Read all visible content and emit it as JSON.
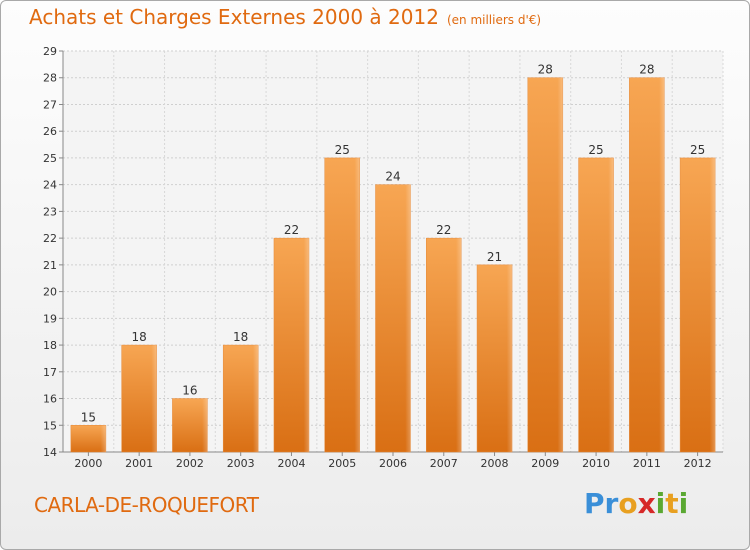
{
  "header": {
    "title": "Achats et Charges Externes 2000 à 2012",
    "unit": "(en milliers d'€)"
  },
  "footer": {
    "commune": "CARLA-DE-ROQUEFORT",
    "logo_letters": [
      {
        "ch": "P",
        "color": "#3a8fd8"
      },
      {
        "ch": "r",
        "color": "#3a8fd8"
      },
      {
        "ch": "o",
        "color": "#e8a020"
      },
      {
        "ch": "x",
        "color": "#d62828"
      },
      {
        "ch": "i",
        "color": "#5aa832"
      },
      {
        "ch": "t",
        "color": "#e8a020"
      },
      {
        "ch": "i",
        "color": "#5aa832"
      }
    ]
  },
  "chart_data": {
    "type": "bar",
    "title": "Achats et Charges Externes 2000 à 2012",
    "categories": [
      "2000",
      "2001",
      "2002",
      "2003",
      "2004",
      "2005",
      "2006",
      "2007",
      "2008",
      "2009",
      "2010",
      "2011",
      "2012"
    ],
    "values": [
      15,
      18,
      16,
      18,
      22,
      25,
      24,
      22,
      21,
      28,
      25,
      28,
      25
    ],
    "ylim": [
      14,
      29
    ],
    "yticks": [
      14,
      15,
      16,
      17,
      18,
      19,
      20,
      21,
      22,
      23,
      24,
      25,
      26,
      27,
      28,
      29
    ],
    "grid": true,
    "bar_color": "#f08a2a"
  }
}
